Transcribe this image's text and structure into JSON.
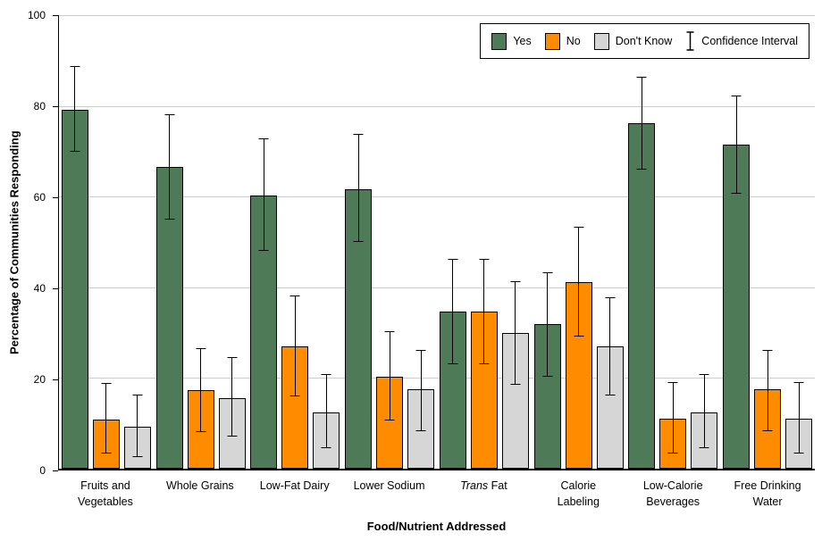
{
  "chart_data": {
    "type": "bar",
    "title": "",
    "xlabel": "Food/Nutrient Addressed",
    "ylabel": "Percentage of Communities Responding",
    "ylim": [
      0,
      100
    ],
    "yticks": [
      0,
      20,
      40,
      60,
      80,
      100
    ],
    "grid": "horizontal",
    "legend_position": "top-right-inside",
    "ci_label": "Confidence Interval",
    "error_bars": true,
    "categories": [
      {
        "lines": [
          "Fruits and",
          "Vegetables"
        ]
      },
      {
        "lines": [
          "Whole Grains"
        ]
      },
      {
        "lines": [
          "Low-Fat Dairy"
        ]
      },
      {
        "lines": [
          "Lower Sodium"
        ]
      },
      {
        "lines": [
          "Trans Fat"
        ],
        "italic_first_word": true
      },
      {
        "lines": [
          "Calorie",
          "Labeling"
        ]
      },
      {
        "lines": [
          "Low-Calorie",
          "Beverages"
        ]
      },
      {
        "lines": [
          "Free Drinking",
          "Water"
        ]
      }
    ],
    "series": [
      {
        "name": "Yes",
        "color": "#4e7a58",
        "values": [
          79.2,
          66.5,
          60.2,
          61.6,
          34.7,
          31.8,
          76.1,
          71.4
        ],
        "ci_low": [
          69.8,
          54.9,
          48.0,
          50.0,
          23.1,
          20.2,
          65.9,
          60.6
        ],
        "ci_high": [
          88.8,
          78.2,
          72.9,
          73.9,
          46.3,
          43.3,
          86.5,
          82.2
        ]
      },
      {
        "name": "No",
        "color": "#ff8c00",
        "values": [
          10.9,
          17.3,
          26.9,
          20.2,
          34.7,
          41.2,
          11.0,
          17.5
        ],
        "ci_low": [
          3.4,
          8.1,
          15.9,
          10.6,
          23.1,
          29.2,
          3.3,
          8.2
        ],
        "ci_high": [
          18.9,
          26.6,
          38.2,
          30.4,
          46.3,
          53.3,
          19.0,
          26.1
        ]
      },
      {
        "name": "Don't Know",
        "color": "#d6d6d6",
        "values": [
          9.3,
          15.6,
          12.4,
          17.5,
          30.0,
          26.9,
          12.4,
          11.0
        ],
        "ci_low": [
          2.5,
          7.0,
          4.5,
          8.2,
          18.6,
          16.1,
          4.5,
          3.3
        ],
        "ci_high": [
          16.4,
          24.6,
          20.8,
          26.1,
          41.4,
          37.8,
          20.8,
          19.0
        ]
      }
    ],
    "style": {
      "gridline_color": "#cccccc",
      "axis_color": "#000000",
      "bar_border_color": "#000000"
    }
  }
}
